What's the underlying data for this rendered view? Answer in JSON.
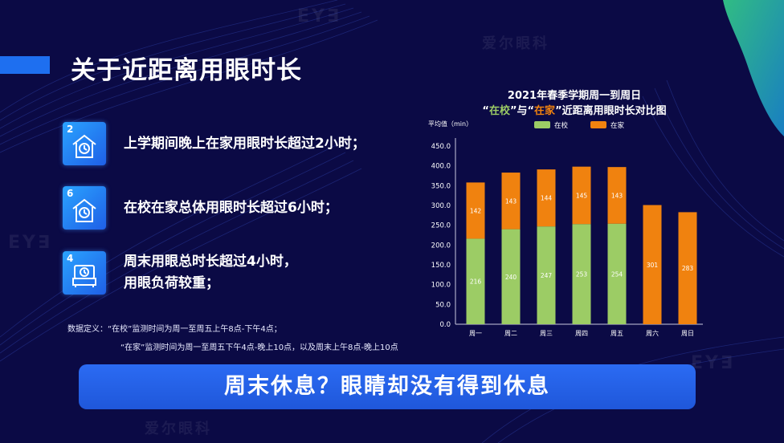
{
  "main_title": "关于近距离用眼时长",
  "points": [
    {
      "number": "2",
      "icon": "clock-house-icon",
      "lines": [
        "上学期间晚上在家用眼时长超过2小时；"
      ]
    },
    {
      "number": "6",
      "icon": "clock-house-icon",
      "lines": [
        "在校在家总体用眼时长超过6小时；"
      ]
    },
    {
      "number": "4",
      "icon": "clock-sofa-icon",
      "lines": [
        "周末用眼总时长超过4小时，",
        "用眼负荷较重；"
      ]
    }
  ],
  "notes": {
    "line1": "数据定义：“在校”监测时间为周一至周五上午8点-下午4点；",
    "line2": "“在家”监测时间为周一至周五下午4点-晚上10点，以及周末上午8点-晚上10点"
  },
  "banner": "周末休息？眼睛却没有得到休息",
  "watermark": {
    "brand": "EY∃",
    "cn": "爱尔眼科"
  },
  "colors": {
    "background": "#0b0a45",
    "accent_blue": "#1e6ff0",
    "school_green": "#9ccc65",
    "home_orange": "#f0820f",
    "title_school": "#9ccc65",
    "title_home": "#f0820f"
  },
  "chart_data": {
    "type": "bar",
    "stacked": true,
    "title_line1": "2021年春季学期周一到周日",
    "title_line2": {
      "q1": "“",
      "school": "在校",
      "mid": "”与“",
      "home": "在家",
      "rest": "”近距离用眼时长对比图"
    },
    "ylabel": "平均值（min）",
    "ylim": [
      0,
      450
    ],
    "yticks": [
      "0.0",
      "50.0",
      "100.0",
      "150.0",
      "200.0",
      "250.0",
      "300.0",
      "350.0",
      "400.0",
      "450.0"
    ],
    "categories": [
      "周一",
      "周二",
      "周三",
      "周四",
      "周五",
      "周六",
      "周日"
    ],
    "series": [
      {
        "name": "在校",
        "color": "#9ccc65",
        "values": [
          216,
          240,
          247,
          253,
          254,
          0,
          0
        ],
        "labels": [
          "216",
          "240",
          "247",
          "253",
          "254",
          "",
          ""
        ]
      },
      {
        "name": "在家",
        "color": "#f0820f",
        "values": [
          142,
          143,
          144,
          145,
          143,
          301,
          283
        ],
        "labels": [
          "142",
          "143",
          "144",
          "145",
          "143",
          "301",
          "283"
        ]
      }
    ],
    "legend_position": "top",
    "grid": false
  }
}
